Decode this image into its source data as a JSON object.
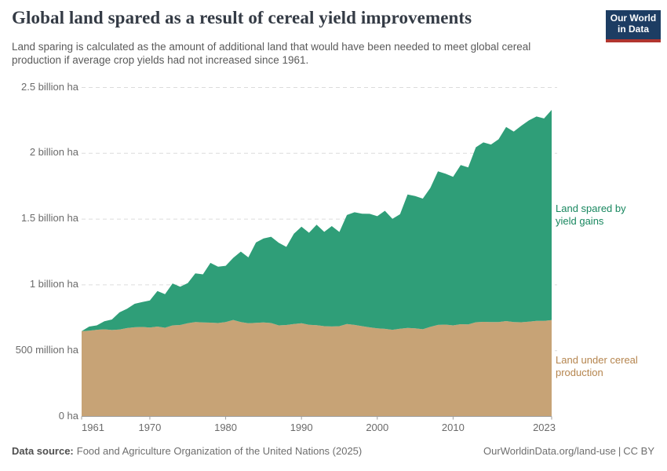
{
  "header": {
    "title": "Global land spared as a result of cereal yield improvements",
    "subtitle": "Land sparing is calculated as the amount of additional land that would have been needed to meet global cereal production if average crop yields had not increased since 1961."
  },
  "logo": {
    "line1": "Our World",
    "line2": "in Data"
  },
  "colors": {
    "area_green": "#2f9e78",
    "area_brown": "#c7a376",
    "label_green": "#18875f",
    "label_brown": "#b5854e",
    "logo_navy": "#1d3d63",
    "logo_red": "#b1352f",
    "gridline": "#dcdcdc",
    "axis": "#9e9e9e",
    "axis_text": "#6b6b6b"
  },
  "chart_data": {
    "type": "area",
    "stacked": true,
    "title": "Global land spared as a result of cereal yield improvements",
    "xlabel": "",
    "ylabel": "",
    "unit": "million hectares",
    "grid": "horizontal-dashed",
    "legend_position": "right-annotations",
    "ylim": [
      0,
      2500
    ],
    "x_years": [
      1961,
      1962,
      1963,
      1964,
      1965,
      1966,
      1967,
      1968,
      1969,
      1970,
      1971,
      1972,
      1973,
      1974,
      1975,
      1976,
      1977,
      1978,
      1979,
      1980,
      1981,
      1982,
      1983,
      1984,
      1985,
      1986,
      1987,
      1988,
      1989,
      1990,
      1991,
      1992,
      1993,
      1994,
      1995,
      1996,
      1997,
      1998,
      1999,
      2000,
      2001,
      2002,
      2003,
      2004,
      2005,
      2006,
      2007,
      2008,
      2009,
      2010,
      2011,
      2012,
      2013,
      2014,
      2015,
      2016,
      2017,
      2018,
      2019,
      2020,
      2021,
      2022,
      2023
    ],
    "series": [
      {
        "name": "Land under cereal production",
        "color": "#c7a376",
        "values": [
          648,
          652,
          659,
          662,
          657,
          661,
          672,
          678,
          680,
          676,
          683,
          674,
          692,
          695,
          709,
          718,
          715,
          713,
          710,
          717,
          733,
          717,
          708,
          712,
          715,
          710,
          692,
          695,
          703,
          708,
          697,
          694,
          686,
          684,
          686,
          703,
          696,
          686,
          677,
          670,
          666,
          659,
          667,
          673,
          670,
          663,
          681,
          696,
          698,
          692,
          701,
          699,
          716,
          719,
          717,
          718,
          725,
          718,
          716,
          721,
          727,
          726,
          732
        ]
      },
      {
        "name": "Land spared by yield gains",
        "color": "#2f9e78",
        "values": [
          0,
          31,
          33,
          61,
          80,
          130,
          147,
          178,
          190,
          206,
          270,
          255,
          319,
          291,
          305,
          370,
          365,
          454,
          428,
          428,
          472,
          536,
          501,
          610,
          638,
          656,
          628,
          594,
          686,
          734,
          699,
          763,
          717,
          763,
          716,
          828,
          856,
          855,
          863,
          852,
          897,
          843,
          870,
          1014,
          1005,
          993,
          1056,
          1167,
          1147,
          1129,
          1210,
          1194,
          1330,
          1364,
          1350,
          1389,
          1475,
          1447,
          1494,
          1529,
          1553,
          1539,
          1598
        ]
      }
    ],
    "y_ticks": [
      {
        "value": 0,
        "label": "0 ha"
      },
      {
        "value": 500,
        "label": "500 million ha"
      },
      {
        "value": 1000,
        "label": "1 billion ha"
      },
      {
        "value": 1500,
        "label": "1.5 billion ha"
      },
      {
        "value": 2000,
        "label": "2 billion ha"
      },
      {
        "value": 2500,
        "label": "2.5 billion ha"
      }
    ],
    "x_ticks": [
      1961,
      1970,
      1980,
      1990,
      2000,
      2010,
      2023
    ]
  },
  "footer": {
    "source_label": "Data source:",
    "source_text": "Food and Agriculture Organization of the United Nations (2025)",
    "url": "OurWorldinData.org/land-use",
    "separator": "|",
    "license": "CC BY"
  }
}
